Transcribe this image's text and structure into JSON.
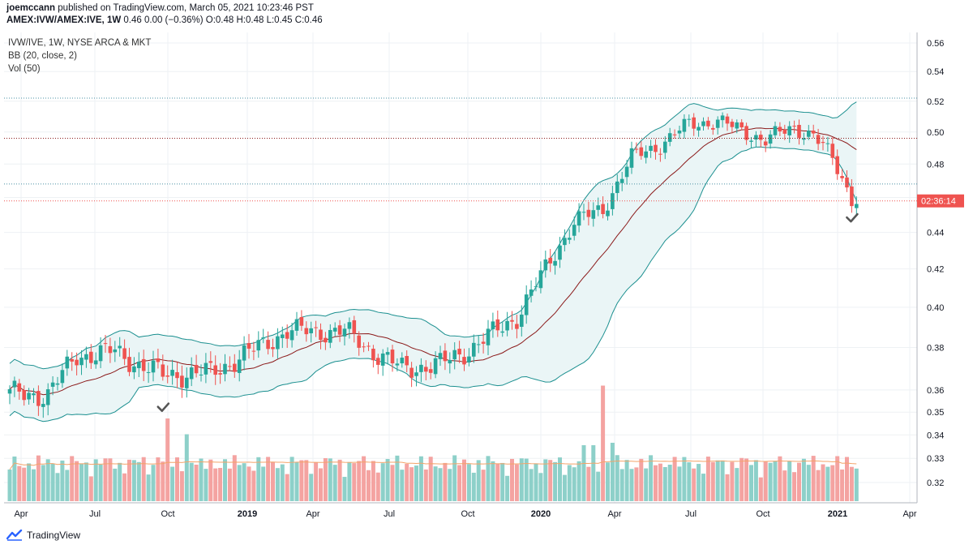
{
  "header": {
    "author": "joemccann",
    "published_text": "published on TradingView.com, March 05, 2021 10:23:46 PST",
    "symbol_line": "AMEX:IVW/AMEX:IVE, 1W",
    "quote_text": "0.46 0.00 (−0.36%)",
    "o_label": "O:",
    "o_value": "0.48",
    "h_label": "H:",
    "h_value": "0.48",
    "l_label": "L:",
    "l_value": "0.45",
    "c_label": "C:",
    "c_value": "0.46"
  },
  "legend": {
    "series": "IVW/IVE, 1W, NYSE ARCA & MKT",
    "bb": "BB (20, close, 2)",
    "vol": "Vol (50)"
  },
  "brand": {
    "name": "TradingView",
    "color": "#2962ff"
  },
  "colors": {
    "up": "#26a69a",
    "down": "#ef5350",
    "up_vol": "#8dd0c9",
    "down_vol": "#f4a3a1",
    "basis": "#8b1a1a",
    "band": "#1a8f8f",
    "band_fill": "#eaf5f6",
    "vol_ma": "#f4a46a"
  },
  "chart_data": {
    "type": "candlestick",
    "title": "IVW/IVE, 1W, NYSE ARCA & MKT",
    "price_axis": {
      "scale": "log",
      "ticks": [
        "0.56",
        "0.54",
        "0.52",
        "0.50",
        "0.48",
        "0.46",
        "0.44",
        "0.42",
        "0.40",
        "0.38",
        "0.36",
        "0.35",
        "0.34",
        "0.33",
        "0.32"
      ],
      "range": [
        0.315,
        0.565
      ]
    },
    "time_axis": {
      "ticks": [
        "Apr",
        "Jul",
        "Oct",
        "2019",
        "Apr",
        "Jul",
        "Oct",
        "2020",
        "Apr",
        "Jul",
        "Oct",
        "2021",
        "Apr"
      ]
    },
    "last_price_label": "02:36:14",
    "close_keypoints": [
      [
        0,
        0.358
      ],
      [
        8,
        0.358
      ],
      [
        14,
        0.376
      ],
      [
        22,
        0.378
      ],
      [
        26,
        0.373
      ],
      [
        32,
        0.367
      ],
      [
        42,
        0.368
      ],
      [
        48,
        0.375
      ],
      [
        58,
        0.388
      ],
      [
        70,
        0.388
      ],
      [
        76,
        0.378
      ],
      [
        82,
        0.37
      ],
      [
        90,
        0.372
      ],
      [
        96,
        0.379
      ],
      [
        106,
        0.395
      ],
      [
        112,
        0.42
      ],
      [
        118,
        0.446
      ],
      [
        124,
        0.453
      ],
      [
        130,
        0.484
      ],
      [
        136,
        0.492
      ],
      [
        142,
        0.505
      ],
      [
        148,
        0.507
      ],
      [
        152,
        0.502
      ],
      [
        158,
        0.495
      ],
      [
        164,
        0.503
      ],
      [
        168,
        0.498
      ],
      [
        172,
        0.483
      ],
      [
        176,
        0.46
      ]
    ],
    "horizontal_lines": [
      0.522,
      0.496,
      0.468,
      0.458
    ],
    "markers": [
      {
        "symbol": "check",
        "price": 0.352,
        "week": 32
      },
      {
        "symbol": "check",
        "price": 0.448,
        "week": 176
      }
    ]
  }
}
